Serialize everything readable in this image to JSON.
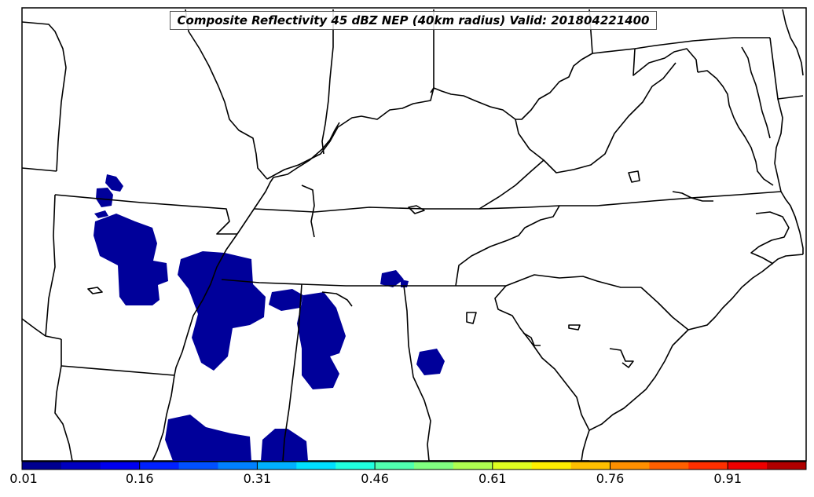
{
  "title": "Composite Reflectivity 45 dBZ NEP (40km radius) Valid: 201804221400",
  "colorbar": {
    "colors": [
      "#00008f",
      "#0000bf",
      "#0000ef",
      "#0020ff",
      "#0050ff",
      "#0080ff",
      "#00b0ff",
      "#00e0ff",
      "#20ffdf",
      "#50ffaf",
      "#80ff80",
      "#afff50",
      "#dfff20",
      "#ffef00",
      "#ffbf00",
      "#ff8f00",
      "#ff5f00",
      "#ff2f00",
      "#ef0000",
      "#af0000"
    ],
    "tick_labels": [
      "0.01",
      "0.16",
      "0.31",
      "0.46",
      "0.61",
      "0.76",
      "0.91"
    ]
  },
  "map": {
    "fill_color": "#00009a",
    "boundary_color": "#000000"
  }
}
